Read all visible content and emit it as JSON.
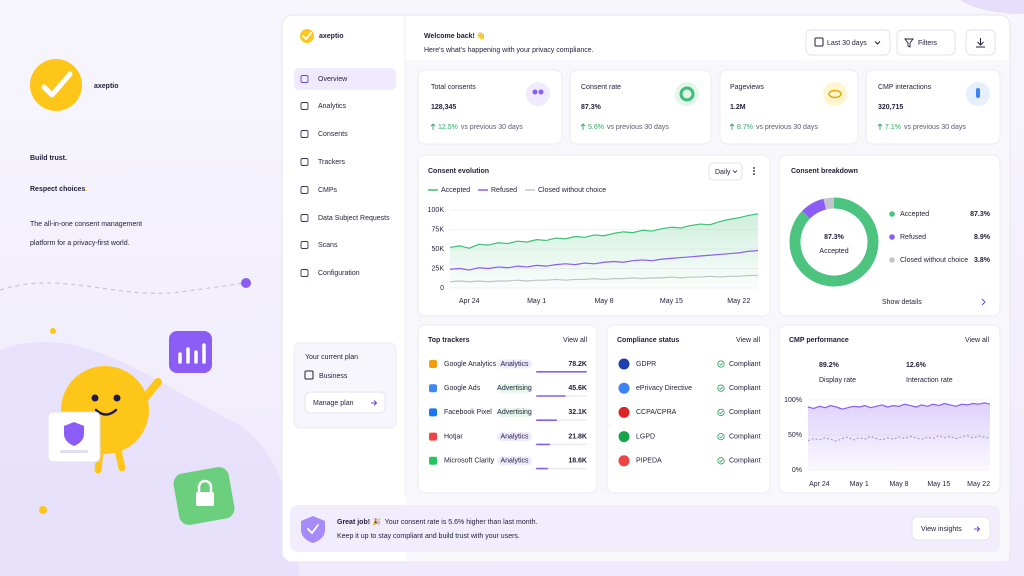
{
  "brand": {
    "name": "axeptio"
  },
  "hero": {
    "title_line1": "Build trust.",
    "title_line2": "Respect choices",
    "title_dot": ".",
    "tagline": [
      "The all-in-one consent management",
      "platform for a privacy-first world."
    ]
  },
  "sidebar": {
    "logo": "axeptio",
    "nav": [
      "Overview",
      "Analytics",
      "Consents",
      "Trackers",
      "CMPs",
      "Data Subject Requests",
      "Scans",
      "Configuration"
    ],
    "plan_label": "Your current plan",
    "plan_name": "Business",
    "plan_button": "Manage plan"
  },
  "header": {
    "title": "Welcome back! 👋",
    "subtitle": "Here's what's happening with your privacy compliance.",
    "range_button": "Last 30 days",
    "filters_button": "Filters"
  },
  "kpis": [
    {
      "label": "Total consents",
      "value": "128,345",
      "change": "12.5%",
      "change_text": "vs previous 30 days"
    },
    {
      "label": "Consent rate",
      "value": "87.3%",
      "change": "5.6%",
      "change_text": "vs previous 30 days"
    },
    {
      "label": "Pageviews",
      "value": "1.2M",
      "change": "8.7%",
      "change_text": "vs previous 30 days"
    },
    {
      "label": "CMP interactions",
      "value": "320,715",
      "change": "7.1%",
      "change_text": "vs previous 30 days"
    }
  ],
  "consent_evolution": {
    "type": "line",
    "title": "Consent evolution",
    "granularity": "Daily",
    "categories": [
      null,
      null,
      "Apr 24",
      null,
      null,
      null,
      null,
      null,
      null,
      "May 1",
      null,
      null,
      null,
      null,
      null,
      null,
      "May 8",
      null,
      null,
      null,
      null,
      null,
      null,
      "May 15",
      null,
      null,
      null,
      null,
      null,
      null,
      "May 22",
      null,
      null
    ],
    "series": [
      {
        "name": "Accepted",
        "color": "#3fbf76",
        "fill": true,
        "values": [
          52000,
          54000,
          51000,
          56000,
          55000,
          58000,
          57000,
          60000,
          59000,
          62000,
          61000,
          64000,
          63000,
          66000,
          65000,
          68000,
          67000,
          70000,
          72000,
          71000,
          74000,
          73000,
          76000,
          78000,
          77000,
          80000,
          82000,
          81000,
          85000,
          88000,
          90000,
          93000,
          95000
        ]
      },
      {
        "name": "Refused",
        "color": "#8b5cf6",
        "fill": false,
        "values": [
          24000,
          25000,
          23000,
          26000,
          25000,
          27000,
          26000,
          28000,
          27000,
          29000,
          28000,
          30000,
          31000,
          30000,
          32000,
          31000,
          33000,
          34000,
          33000,
          35000,
          36000,
          35000,
          37000,
          38000,
          39000,
          40000,
          41000,
          42000,
          43000,
          44000,
          45000,
          47000,
          48000
        ]
      },
      {
        "name": "Closed without choice",
        "color": "#c2c2cc",
        "fill": false,
        "values": [
          8000,
          9000,
          8000,
          9000,
          8000,
          9000,
          9000,
          10000,
          9000,
          10000,
          10000,
          11000,
          10000,
          11000,
          11000,
          12000,
          11000,
          12000,
          12000,
          13000,
          12000,
          13000,
          13000,
          14000,
          13000,
          14000,
          14000,
          15000,
          14000,
          15000,
          15000,
          16000,
          16000
        ]
      }
    ],
    "ylim": [
      0,
      100000
    ],
    "yticks": [
      {
        "value": 0,
        "label": "0"
      },
      {
        "value": 25000,
        "label": "25K"
      },
      {
        "value": 50000,
        "label": "50K"
      },
      {
        "value": 75000,
        "label": "75K"
      },
      {
        "value": 100000,
        "label": "100K"
      }
    ],
    "grid": true
  },
  "consent_breakdown": {
    "type": "pie",
    "title": "Consent breakdown",
    "center_value": "87.3%",
    "center_label": "Accepted",
    "categories": [
      "Accepted",
      "Refused",
      "Closed without choice"
    ],
    "values": [
      87.3,
      8.9,
      3.8
    ],
    "value_labels": [
      "87.3%",
      "8.9%",
      "3.8%"
    ],
    "colors": [
      "#4cc47f",
      "#8b5cf6",
      "#c4c4cc"
    ],
    "link": "Show details"
  },
  "top_trackers": {
    "title": "Top trackers",
    "link": "View all",
    "rows": [
      {
        "name": "Google Analytics",
        "tag": "Analytics",
        "value": 78200,
        "value_label": "78.2K"
      },
      {
        "name": "Google Ads",
        "tag": "Advertising",
        "value": 45600,
        "value_label": "45.6K"
      },
      {
        "name": "Facebook Pixel",
        "tag": "Advertising",
        "value": 32100,
        "value_label": "32.1K"
      },
      {
        "name": "Hotjar",
        "tag": "Analytics",
        "value": 21800,
        "value_label": "21.8K"
      },
      {
        "name": "Microsoft Clarity",
        "tag": "Analytics",
        "value": 18600,
        "value_label": "18.6K"
      }
    ]
  },
  "compliance": {
    "title": "Compliance status",
    "link": "View all",
    "rows": [
      {
        "name": "GDPR",
        "status": "Compliant"
      },
      {
        "name": "ePrivacy Directive",
        "status": "Compliant"
      },
      {
        "name": "CCPA/CPRA",
        "status": "Compliant"
      },
      {
        "name": "LGPD",
        "status": "Compliant"
      },
      {
        "name": "PIPEDA",
        "status": "Compliant"
      }
    ]
  },
  "cmp_performance": {
    "type": "line",
    "title": "CMP performance",
    "link": "View all",
    "stats": [
      {
        "value": "89.2%",
        "label": "Display rate"
      },
      {
        "value": "12.6%",
        "label": "Interaction rate"
      }
    ],
    "categories": [
      null,
      null,
      "Apr 24",
      null,
      null,
      null,
      null,
      null,
      null,
      "May 1",
      null,
      null,
      null,
      null,
      null,
      null,
      "May 8",
      null,
      null,
      null,
      null,
      null,
      null,
      "May 15",
      null,
      null,
      null,
      null,
      null,
      null,
      "May 22",
      null,
      null
    ],
    "series": [
      {
        "color": "#8b5cf6",
        "fill": true,
        "dashed": false,
        "values": [
          90,
          88,
          91,
          89,
          92,
          90,
          87,
          89,
          91,
          90,
          92,
          89,
          91,
          93,
          90,
          92,
          91,
          94,
          92,
          90,
          93,
          91,
          94,
          92,
          95,
          93,
          91,
          94,
          93,
          95,
          94,
          96,
          94
        ]
      },
      {
        "color": "#a99ad6",
        "fill": false,
        "dashed": true,
        "values": [
          42,
          45,
          43,
          46,
          44,
          41,
          45,
          47,
          43,
          46,
          44,
          48,
          45,
          43,
          46,
          44,
          47,
          45,
          48,
          46,
          44,
          47,
          45,
          49,
          46,
          48,
          45,
          47,
          49,
          46,
          48,
          47,
          45
        ]
      }
    ],
    "ylim": [
      0,
      100
    ],
    "yticks": [
      {
        "value": 0,
        "label": "0%"
      },
      {
        "value": 50,
        "label": "50%"
      },
      {
        "value": 100,
        "label": "100%"
      }
    ],
    "grid": true
  },
  "banner": {
    "title": "Great job! 🎉",
    "message": "Your consent rate is 5.6% higher than last month.",
    "subtext": "Keep it up to stay compliant and build trust with your users.",
    "button": "View insights"
  }
}
